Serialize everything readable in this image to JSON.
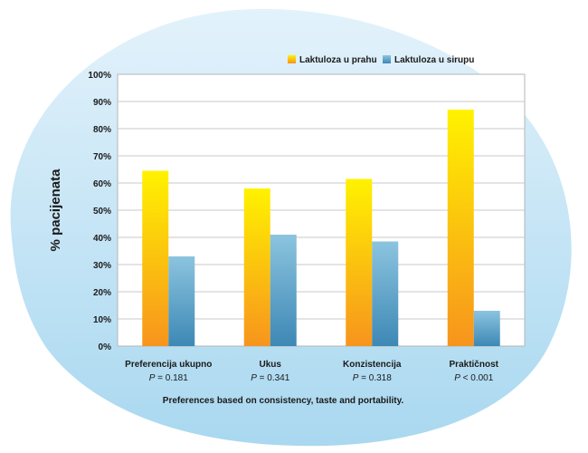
{
  "chart_data": {
    "type": "bar",
    "categories": [
      "Preferencija ukupno",
      "Ukus",
      "Konzistencija",
      "Praktičnost"
    ],
    "p_values": [
      {
        "symbol": "P",
        "text": " = 0.181"
      },
      {
        "symbol": "P",
        "text": " = 0.341"
      },
      {
        "symbol": "P",
        "text": " = 0.318"
      },
      {
        "symbol": "P",
        "text": " < 0.001"
      }
    ],
    "series": [
      {
        "name": "Laktuloza u prahu",
        "values": [
          64.5,
          58,
          61.5,
          87
        ],
        "color_top": "#FFF200",
        "color_bottom": "#F7941D"
      },
      {
        "name": "Laktuloza u sirupu",
        "values": [
          33,
          41,
          38.5,
          13
        ],
        "color_top": "#8CC4DF",
        "color_bottom": "#3D88B5"
      }
    ],
    "ylabel": "% pacijenata",
    "xlabel": "",
    "ylim": [
      0,
      100
    ],
    "yticks": [
      "0%",
      "10%",
      "20%",
      "30%",
      "40%",
      "50%",
      "60%",
      "70%",
      "80%",
      "90%",
      "100%"
    ],
    "grid": true,
    "legend": "top-right",
    "footnote": "Preferences based on consistency, taste and portability.",
    "background_blob_color": "#A9D8F0"
  }
}
